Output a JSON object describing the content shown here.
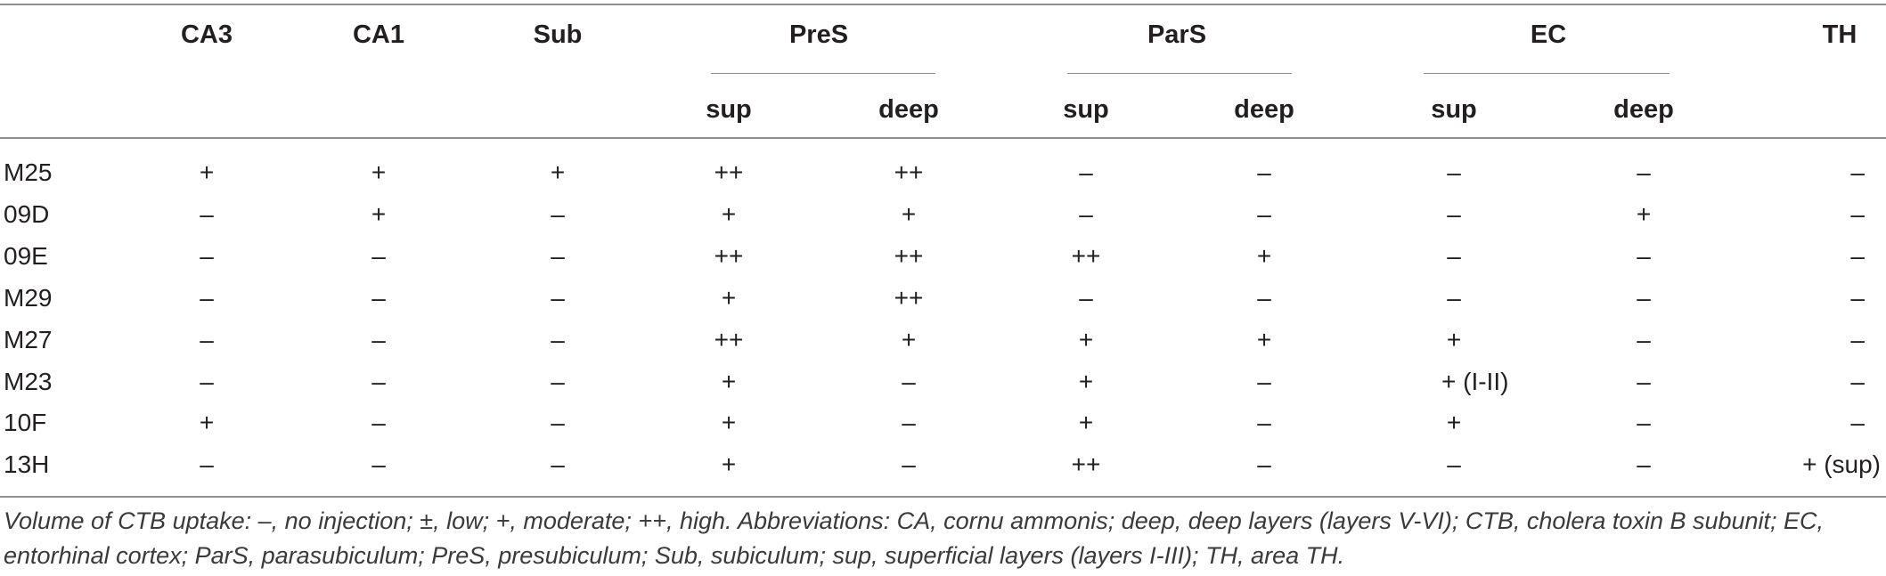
{
  "table": {
    "group_headers": [
      "CA3",
      "CA1",
      "Sub",
      "PreS",
      "ParS",
      "EC",
      "TH"
    ],
    "sub_headers": [
      "sup",
      "deep",
      "sup",
      "deep",
      "sup",
      "deep"
    ],
    "rows": [
      {
        "label": "M25",
        "cells": [
          "+",
          "+",
          "+",
          "++",
          "++",
          "–",
          "–",
          "–",
          "–",
          "–"
        ]
      },
      {
        "label": "09D",
        "cells": [
          "–",
          "+",
          "–",
          "+",
          "+",
          "–",
          "–",
          "–",
          "+",
          "–"
        ]
      },
      {
        "label": "09E",
        "cells": [
          "–",
          "–",
          "–",
          "++",
          "++",
          "++",
          "+",
          "–",
          "–",
          "–"
        ]
      },
      {
        "label": "M29",
        "cells": [
          "–",
          "–",
          "–",
          "+",
          "++",
          "–",
          "–",
          "–",
          "–",
          "–"
        ]
      },
      {
        "label": "M27",
        "cells": [
          "–",
          "–",
          "–",
          "++",
          "+",
          "+",
          "+",
          "+",
          "–",
          "–"
        ]
      },
      {
        "label": "M23",
        "cells": [
          "–",
          "–",
          "–",
          "+",
          "–",
          "+",
          "–",
          "+ (I-II)",
          "–",
          "–"
        ]
      },
      {
        "label": "10F",
        "cells": [
          "+",
          "–",
          "–",
          "+",
          "–",
          "+",
          "–",
          "+",
          "–",
          "–"
        ]
      },
      {
        "label": "13H",
        "cells": [
          "–",
          "–",
          "–",
          "+",
          "–",
          "++",
          "–",
          "–",
          "–",
          "+ (sup)"
        ]
      }
    ],
    "footnote": "Volume of CTB uptake: –, no injection; ±, low; +, moderate; ++, high. Abbreviations: CA, cornu ammonis; deep, deep layers (layers V-VI); CTB, cholera toxin B subunit; EC, entorhinal cortex; ParS, parasubiculum; PreS, presubiculum; Sub, subiculum; sup, superficial layers (layers I-III); TH, area TH."
  }
}
